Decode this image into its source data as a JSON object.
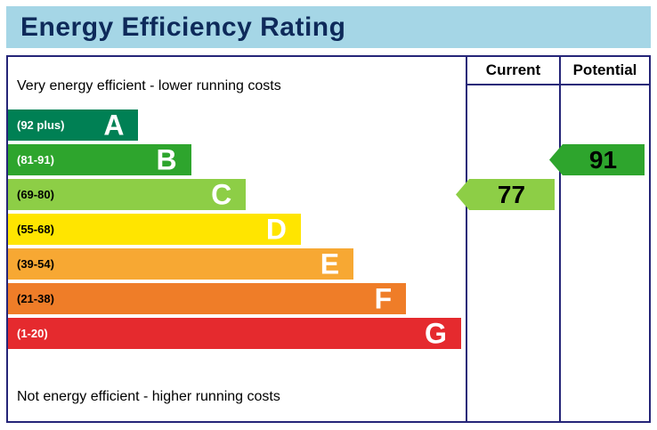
{
  "title": "Energy Efficiency Rating",
  "chart_data": {
    "type": "bar",
    "title": "Energy Efficiency Rating",
    "top_label": "Very energy efficient - lower running costs",
    "bottom_label": "Not energy efficient - higher running costs",
    "columns": [
      "Current",
      "Potential"
    ],
    "bands": [
      {
        "letter": "A",
        "range": "(92 plus)",
        "color": "#008054",
        "width_pct": 28.5,
        "range_text_color": "#ffffff",
        "letter_text_color": "#ffffff"
      },
      {
        "letter": "B",
        "range": "(81-91)",
        "color": "#2ea52d",
        "width_pct": 40,
        "range_text_color": "#ffffff",
        "letter_text_color": "#ffffff"
      },
      {
        "letter": "C",
        "range": "(69-80)",
        "color": "#8dce46",
        "width_pct": 52,
        "range_text_color": "#000000",
        "letter_text_color": "#ffffff"
      },
      {
        "letter": "D",
        "range": "(55-68)",
        "color": "#ffe500",
        "width_pct": 64,
        "range_text_color": "#000000",
        "letter_text_color": "#ffffff"
      },
      {
        "letter": "E",
        "range": "(39-54)",
        "color": "#f7a833",
        "width_pct": 75.5,
        "range_text_color": "#000000",
        "letter_text_color": "#ffffff"
      },
      {
        "letter": "F",
        "range": "(21-38)",
        "color": "#ef7d28",
        "width_pct": 87,
        "range_text_color": "#000000",
        "letter_text_color": "#ffffff"
      },
      {
        "letter": "G",
        "range": "(1-20)",
        "color": "#e52a2e",
        "width_pct": 99,
        "range_text_color": "#ffffff",
        "letter_text_color": "#ffffff"
      }
    ],
    "current": {
      "value": "77",
      "band": "C",
      "color": "#8dce46"
    },
    "potential": {
      "value": "91",
      "band": "B",
      "color": "#2ea52d"
    }
  },
  "colors": {
    "title_background": "#a5d6e6",
    "title_text": "#0e2a5a",
    "chart_border": "#252578"
  }
}
